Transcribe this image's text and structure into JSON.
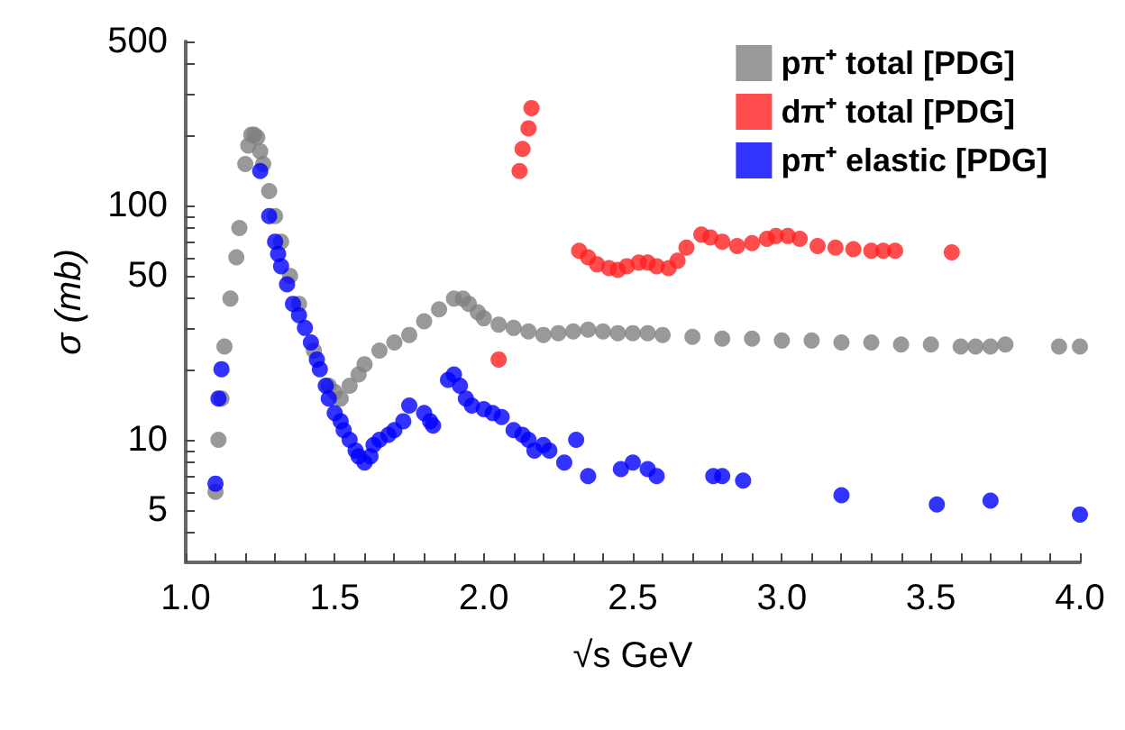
{
  "chart_data": {
    "type": "scatter",
    "xlabel": "√s GeV",
    "ylabel": "σ (mb)",
    "log": "y",
    "grid": false,
    "legend": "top right",
    "marker": "circle",
    "xlim": [
      1.0,
      4.0
    ],
    "ylim": [
      3,
      500
    ],
    "xticks": [
      {
        "value": 1.0,
        "label": "1.0"
      },
      {
        "value": 1.1,
        "label": null
      },
      {
        "value": 1.2,
        "label": null
      },
      {
        "value": 1.3,
        "label": null
      },
      {
        "value": 1.4,
        "label": null
      },
      {
        "value": 1.5,
        "label": "1.5"
      },
      {
        "value": 1.6,
        "label": null
      },
      {
        "value": 1.7,
        "label": null
      },
      {
        "value": 1.8,
        "label": null
      },
      {
        "value": 1.9,
        "label": null
      },
      {
        "value": 2.0,
        "label": "2.0"
      },
      {
        "value": 2.1,
        "label": null
      },
      {
        "value": 2.2,
        "label": null
      },
      {
        "value": 2.3,
        "label": null
      },
      {
        "value": 2.4,
        "label": null
      },
      {
        "value": 2.5,
        "label": "2.5"
      },
      {
        "value": 2.6,
        "label": null
      },
      {
        "value": 2.7,
        "label": null
      },
      {
        "value": 2.8,
        "label": null
      },
      {
        "value": 2.9,
        "label": null
      },
      {
        "value": 3.0,
        "label": "3.0"
      },
      {
        "value": 3.1,
        "label": null
      },
      {
        "value": 3.2,
        "label": null
      },
      {
        "value": 3.3,
        "label": null
      },
      {
        "value": 3.4,
        "label": null
      },
      {
        "value": 3.5,
        "label": "3.5"
      },
      {
        "value": 3.6,
        "label": null
      },
      {
        "value": 3.7,
        "label": null
      },
      {
        "value": 3.8,
        "label": null
      },
      {
        "value": 3.9,
        "label": null
      },
      {
        "value": 4.0,
        "label": "4.0"
      }
    ],
    "yticks": [
      {
        "value": 4,
        "label": null
      },
      5,
      {
        "value": 6,
        "label": null
      },
      {
        "value": 7,
        "label": null
      },
      {
        "value": 8,
        "label": null
      },
      {
        "value": 9,
        "label": null
      },
      10,
      {
        "value": 20,
        "label": null
      },
      {
        "value": 30,
        "label": null
      },
      {
        "value": 40,
        "label": null
      },
      50,
      {
        "value": 60,
        "label": null
      },
      {
        "value": 70,
        "label": null
      },
      {
        "value": 80,
        "label": null
      },
      {
        "value": 90,
        "label": null
      },
      100,
      {
        "value": 200,
        "label": null
      },
      {
        "value": 300,
        "label": null
      },
      {
        "value": 400,
        "label": null
      },
      500
    ],
    "series": [
      {
        "name": "pπ⁺ total [PDG]",
        "color": "#808080",
        "x": [
          1.1,
          1.11,
          1.12,
          1.13,
          1.15,
          1.17,
          1.18,
          1.2,
          1.21,
          1.22,
          1.23,
          1.24,
          1.25,
          1.26,
          1.28,
          1.3,
          1.32,
          1.35,
          1.38,
          1.4,
          1.43,
          1.45,
          1.48,
          1.5,
          1.52,
          1.55,
          1.58,
          1.6,
          1.65,
          1.7,
          1.75,
          1.8,
          1.85,
          1.9,
          1.93,
          1.95,
          1.98,
          2.0,
          2.05,
          2.1,
          2.15,
          2.2,
          2.25,
          2.3,
          2.35,
          2.4,
          2.45,
          2.5,
          2.55,
          2.6,
          2.7,
          2.8,
          2.9,
          3.0,
          3.1,
          3.2,
          3.3,
          3.4,
          3.5,
          3.6,
          3.65,
          3.7,
          3.75,
          3.93,
          4.0
        ],
        "values": [
          6,
          10,
          15,
          25,
          40,
          60,
          80,
          150,
          180,
          200,
          200,
          195,
          170,
          150,
          115,
          90,
          70,
          50,
          38,
          null,
          24,
          null,
          17,
          16,
          15,
          17,
          19,
          21,
          24,
          26,
          28,
          32,
          36,
          40,
          40,
          38,
          35,
          33,
          31,
          30,
          29,
          28,
          28.5,
          29,
          29.5,
          29,
          28.5,
          28.5,
          28.5,
          28,
          27.5,
          27,
          27,
          26.5,
          26.5,
          26,
          26,
          25.5,
          25.5,
          25,
          25,
          25,
          25.5,
          25,
          25
        ]
      },
      {
        "name": "dπ⁺ total [PDG]",
        "color": "#ff2020",
        "x": [
          2.05,
          2.12,
          2.13,
          2.15,
          2.16,
          2.32,
          2.35,
          2.38,
          2.42,
          2.45,
          2.48,
          2.52,
          2.55,
          2.58,
          2.62,
          2.65,
          2.68,
          2.71,
          2.73,
          2.76,
          2.8,
          2.85,
          2.9,
          2.95,
          2.98,
          3.02,
          3.06,
          3.12,
          3.18,
          3.24,
          3.3,
          3.34,
          3.38,
          3.57
        ],
        "values": [
          22,
          140,
          174,
          213,
          260,
          64,
          60,
          56,
          54,
          53,
          55,
          57,
          57,
          55,
          54,
          58,
          66,
          null,
          75,
          73,
          70,
          67,
          69,
          72,
          74,
          74,
          72,
          67,
          66,
          65,
          64,
          64,
          64,
          63
        ]
      },
      {
        "name": "pπ⁺ elastic [PDG]",
        "color": "#0000ff",
        "x": [
          1.1,
          1.11,
          1.12,
          1.25,
          1.28,
          1.3,
          1.31,
          1.32,
          1.34,
          1.36,
          1.38,
          1.4,
          1.42,
          1.44,
          1.45,
          1.47,
          1.48,
          1.5,
          1.52,
          1.53,
          1.55,
          1.57,
          1.58,
          1.6,
          1.62,
          1.63,
          1.65,
          1.68,
          1.7,
          1.73,
          1.75,
          1.8,
          1.82,
          1.83,
          1.88,
          1.9,
          1.92,
          1.94,
          1.96,
          2.0,
          2.03,
          2.06,
          2.1,
          2.13,
          2.15,
          2.17,
          2.2,
          2.22,
          2.27,
          2.31,
          2.35,
          2.46,
          2.5,
          2.55,
          2.58,
          2.77,
          2.8,
          2.87,
          3.2,
          3.52,
          3.7,
          4.0
        ],
        "values": [
          6.5,
          15,
          20,
          140,
          90,
          70,
          62,
          55,
          46,
          38,
          34,
          30,
          26,
          22,
          20,
          17,
          15,
          13,
          12,
          11,
          10,
          9,
          8.5,
          8,
          8.5,
          9.5,
          10,
          10.5,
          11,
          12,
          14,
          13,
          12,
          11.5,
          18,
          19,
          17,
          15,
          14,
          13.5,
          13,
          12.5,
          11,
          10.5,
          10,
          9,
          9.5,
          9,
          8,
          10,
          7,
          7.5,
          8,
          7.5,
          7,
          7,
          7,
          6.7,
          5.8,
          5.3,
          5.5,
          4.8
        ]
      }
    ]
  }
}
